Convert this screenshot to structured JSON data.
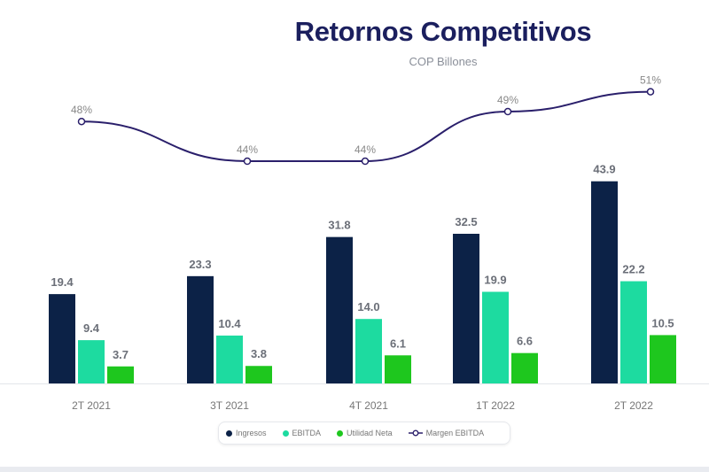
{
  "chart_data": {
    "type": "bar",
    "title": "Retornos Competitivos",
    "subtitle": "COP Billones",
    "categories": [
      "2T 2021",
      "3T 2021",
      "4T 2021",
      "1T 2022",
      "2T 2022"
    ],
    "series": [
      {
        "name": "Ingresos",
        "type": "bar",
        "color": "#0c2247",
        "values": [
          19.4,
          23.3,
          31.8,
          32.5,
          43.9
        ],
        "labels": [
          "19.4",
          "23.3",
          "31.8",
          "32.5",
          "43.9"
        ]
      },
      {
        "name": "EBITDA",
        "type": "bar",
        "color": "#1ddba0",
        "values": [
          9.4,
          10.4,
          14.0,
          19.9,
          22.2
        ],
        "labels": [
          "9.4",
          "10.4",
          "14.0",
          "19.9",
          "22.2"
        ]
      },
      {
        "name": "Utilidad Neta",
        "type": "bar",
        "color": "#1ec71e",
        "values": [
          3.7,
          3.8,
          6.1,
          6.6,
          10.5
        ],
        "labels": [
          "3.7",
          "3.8",
          "6.1",
          "6.6",
          "10.5"
        ]
      },
      {
        "name": "Margen EBITDA",
        "type": "line",
        "color": "#2a1f6b",
        "values": [
          48,
          44,
          44,
          49,
          51
        ],
        "labels": [
          "48%",
          "44%",
          "44%",
          "49%",
          "51%"
        ]
      }
    ],
    "legend_position": "bottom",
    "grid": false
  }
}
